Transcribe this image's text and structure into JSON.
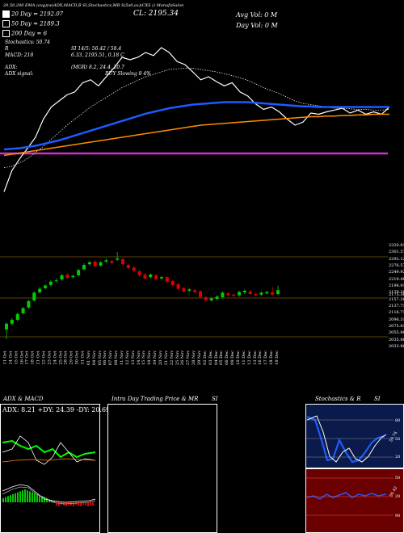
{
  "header": {
    "top_line": "20,50,200 EMA (avg)(w)ADX,MACD,B    SI,Stochastics,MR    S(5s0,ax)(CXS      () ManufaSalon",
    "ema20_label": "20  Day = 2192.07",
    "ema50_label": "50  Day = 2189.3",
    "ema200_label": "200  Day = 6",
    "cl_label": "CL: 2195.34",
    "avg_vol": "Avg Vol: 0   M",
    "day_vol": "Day Vol: 0   M",
    "stochastics_line": "Stochastics: 50.74",
    "r_line": "R",
    "si_line": "SI 14/5: 56.42  / 58.4",
    "macd_line": "MACD: 218",
    "macd_values": "6.33, 2195.51,  0.18  C",
    "adx_line": "ADX:",
    "adx_values": "(MGR) 8.2, 24.4, 20.7",
    "adx_signal": "ADX  signal:",
    "buy_signal": "BUY Slowing 8 4%"
  },
  "price_axis": {
    "ticks": [
      "2320.81",
      "2301.57",
      "2292.12",
      "2276.57",
      "2249.92",
      "2219.48",
      "2198.91",
      "2179.26",
      "2157.26",
      "2137.71",
      "2116.71",
      "2096.31",
      "2075.81",
      "2055.86",
      "2035.86",
      "2033.86"
    ],
    "current": "2175.36"
  },
  "date_axis": {
    "ticks": [
      "11 Oct",
      "14 Oct",
      "15 Oct",
      "16 Oct",
      "17 Oct",
      "18 Oct",
      "21 Oct",
      "22 Oct",
      "23 Oct",
      "24 Oct",
      "25 Oct",
      "28 Oct",
      "29 Oct",
      "30 Oct",
      "31 Oct",
      "01 Nov",
      "04 Nov",
      "05 Nov",
      "06 Nov",
      "07 Nov",
      "08 Nov",
      "11 Nov",
      "12 Nov",
      "13 Nov",
      "14 Nov",
      "15 Nov",
      "18 Nov",
      "19 Nov",
      "20 Nov",
      "21 Nov",
      "22 Nov",
      "25 Nov",
      "26 Nov",
      "27 Nov",
      "28 Nov",
      "29 Nov",
      "02 Dec",
      "03 Dec",
      "04 Dec",
      "05 Dec",
      "06 Dec",
      "09 Dec",
      "10 Dec",
      "11 Dec",
      "12 Dec",
      "13 Dec",
      "16 Dec",
      "17 Dec",
      "18 Dec",
      "19 Dec"
    ]
  },
  "panels": {
    "adx_title": "ADX  & MACD",
    "adx_values": "ADX: 8.21  +DY: 24.39  -DY: 20.69",
    "intraday_title": "Intra  Day Trading Price  & MR",
    "si_title": "SI",
    "stoch_title": "Stochastics & R",
    "stoch_si": "SI",
    "stoch_axis": [
      "80",
      "50",
      "20"
    ],
    "si_axis": [
      "50",
      "20",
      "90"
    ],
    "stoch_tag": "50.74",
    "si_tag": "56.42"
  },
  "colors": {
    "up": "#00cc00",
    "down": "#dd0000",
    "ema20": "#ffffff",
    "ema50": "#1e5aff",
    "ema200": "#ff8c00",
    "support": "#cc33cc",
    "level": "#b8860b"
  },
  "chart_data": [
    {
      "type": "line",
      "title": "",
      "note_series": [
        "price",
        "ema20",
        "ema50",
        "ema200"
      ],
      "x": [
        0,
        1,
        2,
        3,
        4,
        5,
        6,
        7,
        8,
        9,
        10,
        11,
        12,
        13,
        14,
        15,
        16,
        17,
        18,
        19,
        20,
        21,
        22,
        23,
        24,
        25,
        26,
        27,
        28,
        29,
        30,
        31,
        32,
        33,
        34,
        35,
        36,
        37,
        38,
        39,
        40,
        41,
        42,
        43,
        44,
        45,
        46,
        47,
        48,
        49
      ],
      "series": [
        {
          "name": "price",
          "values": [
            2040,
            2075,
            2095,
            2112,
            2130,
            2160,
            2180,
            2190,
            2200,
            2205,
            2220,
            2225,
            2215,
            2230,
            2245,
            2262,
            2258,
            2262,
            2270,
            2265,
            2278,
            2270,
            2255,
            2250,
            2238,
            2225,
            2230,
            2222,
            2215,
            2220,
            2205,
            2198,
            2185,
            2176,
            2180,
            2172,
            2160,
            2150,
            2155,
            2170,
            2168,
            2172,
            2175,
            2178,
            2170,
            2175,
            2168,
            2172,
            2168,
            2180
          ]
        },
        {
          "name": "ema20",
          "values": [
            2080,
            2082,
            2088,
            2095,
            2105,
            2115,
            2127,
            2138,
            2150,
            2160,
            2170,
            2180,
            2188,
            2196,
            2204,
            2212,
            2218,
            2224,
            2230,
            2234,
            2238,
            2242,
            2243,
            2244,
            2244,
            2242,
            2240,
            2238,
            2235,
            2232,
            2228,
            2224,
            2218,
            2212,
            2207,
            2202,
            2196,
            2190,
            2186,
            2184,
            2182,
            2180,
            2178,
            2178,
            2177,
            2176,
            2176,
            2175,
            2175,
            2176
          ]
        },
        {
          "name": "ema50",
          "values": [
            2110,
            2111,
            2112,
            2114,
            2116,
            2119,
            2122,
            2125,
            2129,
            2133,
            2137,
            2141,
            2145,
            2149,
            2153,
            2157,
            2161,
            2165,
            2169,
            2172,
            2175,
            2178,
            2180,
            2182,
            2184,
            2185,
            2186,
            2187,
            2188,
            2188,
            2188,
            2188,
            2187,
            2186,
            2185,
            2184,
            2183,
            2182,
            2181,
            2181,
            2180,
            2180,
            2180,
            2180,
            2180,
            2180,
            2180,
            2180,
            2180,
            2180
          ]
        },
        {
          "name": "ema200",
          "values": [
            2100,
            2102,
            2104,
            2106,
            2108,
            2110,
            2112,
            2114,
            2116,
            2118,
            2120,
            2122,
            2124,
            2126,
            2128,
            2130,
            2132,
            2134,
            2136,
            2138,
            2140,
            2142,
            2144,
            2146,
            2148,
            2150,
            2151,
            2152,
            2153,
            2154,
            2155,
            2156,
            2157,
            2158,
            2159,
            2160,
            2161,
            2162,
            2163,
            2164,
            2164,
            2165,
            2165,
            2166,
            2166,
            2167,
            2167,
            2168,
            2168,
            2168
          ]
        }
      ]
    },
    {
      "type": "bar",
      "title": "",
      "note": "OHLC candles",
      "categories": [
        "11 Oct",
        "14 Oct",
        "15 Oct",
        "16 Oct",
        "17 Oct",
        "18 Oct",
        "21 Oct",
        "22 Oct",
        "23 Oct",
        "24 Oct",
        "25 Oct",
        "28 Oct",
        "29 Oct",
        "30 Oct",
        "31 Oct",
        "01 Nov",
        "04 Nov",
        "05 Nov",
        "06 Nov",
        "07 Nov",
        "08 Nov",
        "11 Nov",
        "12 Nov",
        "13 Nov",
        "14 Nov",
        "15 Nov",
        "18 Nov",
        "19 Nov",
        "20 Nov",
        "21 Nov",
        "22 Nov",
        "25 Nov",
        "26 Nov",
        "27 Nov",
        "28 Nov",
        "29 Nov",
        "02 Dec",
        "03 Dec",
        "04 Dec",
        "05 Dec",
        "06 Dec",
        "09 Dec",
        "10 Dec",
        "11 Dec",
        "12 Dec",
        "13 Dec",
        "16 Dec",
        "17 Dec",
        "18 Dec",
        "19 Dec"
      ],
      "open": [
        2060,
        2078,
        2090,
        2110,
        2128,
        2150,
        2175,
        2188,
        2198,
        2210,
        2215,
        2230,
        2222,
        2228,
        2246,
        2262,
        2270,
        2258,
        2270,
        2272,
        2276,
        2278,
        2260,
        2252,
        2240,
        2230,
        2222,
        2228,
        2218,
        2222,
        2210,
        2200,
        2188,
        2180,
        2182,
        2178,
        2160,
        2150,
        2155,
        2160,
        2172,
        2168,
        2166,
        2175,
        2178,
        2170,
        2168,
        2172,
        2175,
        2170
      ],
      "close": [
        2078,
        2090,
        2108,
        2126,
        2148,
        2174,
        2186,
        2196,
        2208,
        2212,
        2228,
        2220,
        2226,
        2244,
        2260,
        2268,
        2256,
        2268,
        2274,
        2266,
        2280,
        2262,
        2250,
        2242,
        2228,
        2218,
        2230,
        2216,
        2222,
        2208,
        2198,
        2186,
        2178,
        2184,
        2176,
        2160,
        2150,
        2156,
        2162,
        2174,
        2166,
        2164,
        2176,
        2180,
        2170,
        2166,
        2174,
        2176,
        2168,
        2182
      ],
      "high": [
        2082,
        2095,
        2112,
        2130,
        2152,
        2178,
        2192,
        2200,
        2212,
        2218,
        2232,
        2234,
        2230,
        2248,
        2265,
        2272,
        2274,
        2272,
        2280,
        2276,
        2300,
        2282,
        2264,
        2256,
        2244,
        2234,
        2234,
        2232,
        2226,
        2226,
        2214,
        2204,
        2192,
        2188,
        2186,
        2182,
        2164,
        2160,
        2166,
        2178,
        2176,
        2172,
        2180,
        2184,
        2182,
        2174,
        2178,
        2180,
        2192,
        2196
      ],
      "low": [
        2030,
        2072,
        2086,
        2106,
        2124,
        2146,
        2170,
        2184,
        2194,
        2206,
        2210,
        2216,
        2218,
        2224,
        2242,
        2258,
        2252,
        2254,
        2266,
        2262,
        2272,
        2258,
        2246,
        2238,
        2224,
        2214,
        2218,
        2212,
        2214,
        2204,
        2194,
        2182,
        2174,
        2176,
        2172,
        2156,
        2146,
        2146,
        2150,
        2156,
        2162,
        2160,
        2162,
        2170,
        2166,
        2162,
        2164,
        2168,
        2164,
        2166
      ]
    }
  ]
}
